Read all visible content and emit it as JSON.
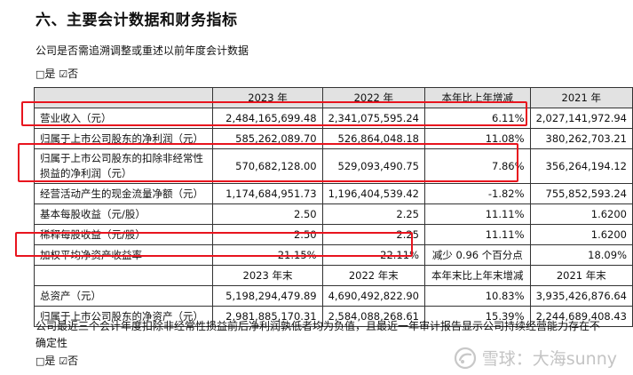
{
  "heading": "六、主要会计数据和财务指标",
  "retro_question": "公司是否需追溯调整或重述以前年度会计数据",
  "retro_answer": {
    "yes_box": "□",
    "yes": "是",
    "no_box": "☑",
    "no": "否"
  },
  "table": {
    "header1": [
      "",
      "2023 年",
      "2022 年",
      "本年比上年增减",
      "2021 年"
    ],
    "rows1": [
      [
        "营业收入（元）",
        "2,484,165,699.48",
        "2,341,075,595.24",
        "6.11%",
        "2,027,141,972.94"
      ],
      [
        "归属于上市公司股东的净利润（元）",
        "585,262,089.70",
        "526,864,048.18",
        "11.08%",
        "380,262,703.21"
      ],
      [
        "归属于上市公司股东的扣除非经常性损益的净利润（元）",
        "570,682,128.00",
        "529,093,490.75",
        "7.86%",
        "356,264,194.12"
      ],
      [
        "经营活动产生的现金流量净额（元）",
        "1,174,684,951.73",
        "1,196,404,539.42",
        "-1.82%",
        "755,852,593.24"
      ],
      [
        "基本每股收益（元/股）",
        "2.50",
        "2.25",
        "11.11%",
        "1.6200"
      ],
      [
        "稀释每股收益（元/股）",
        "2.50",
        "2.25",
        "11.11%",
        "1.6200"
      ],
      [
        "加权平均净资产收益率",
        "21.15%",
        "22.11%",
        "减少 0.96 个百分点",
        "18.09%"
      ]
    ],
    "header2": [
      "",
      "2023 年末",
      "2022 年末",
      "本年末比上年末增减",
      "2021 年末"
    ],
    "rows2": [
      [
        "总资产（元）",
        "5,198,294,479.89",
        "4,690,492,822.90",
        "10.83%",
        "3,935,426,876.64"
      ],
      [
        "归属于上市公司股东的净资产（元）",
        "2,981,885,170.31",
        "2,584,088,268.61",
        "15.39%",
        "2,244,689,408.43"
      ]
    ]
  },
  "going_concern_question": "公司最近三个会计年度扣除非经常性损益前后净利润孰低者均为负值，且最近一年审计报告显示公司持续经营能力存在不确定性",
  "going_concern_answer": {
    "yes_box": "□",
    "yes": "是",
    "no_box": "☑",
    "no": "否"
  },
  "watermark": {
    "icon": "snowball-logo-icon",
    "text": "雪球：大海sunny"
  },
  "colors": {
    "highlight": "#e8141e",
    "header_bg": "#e2e2e2"
  }
}
